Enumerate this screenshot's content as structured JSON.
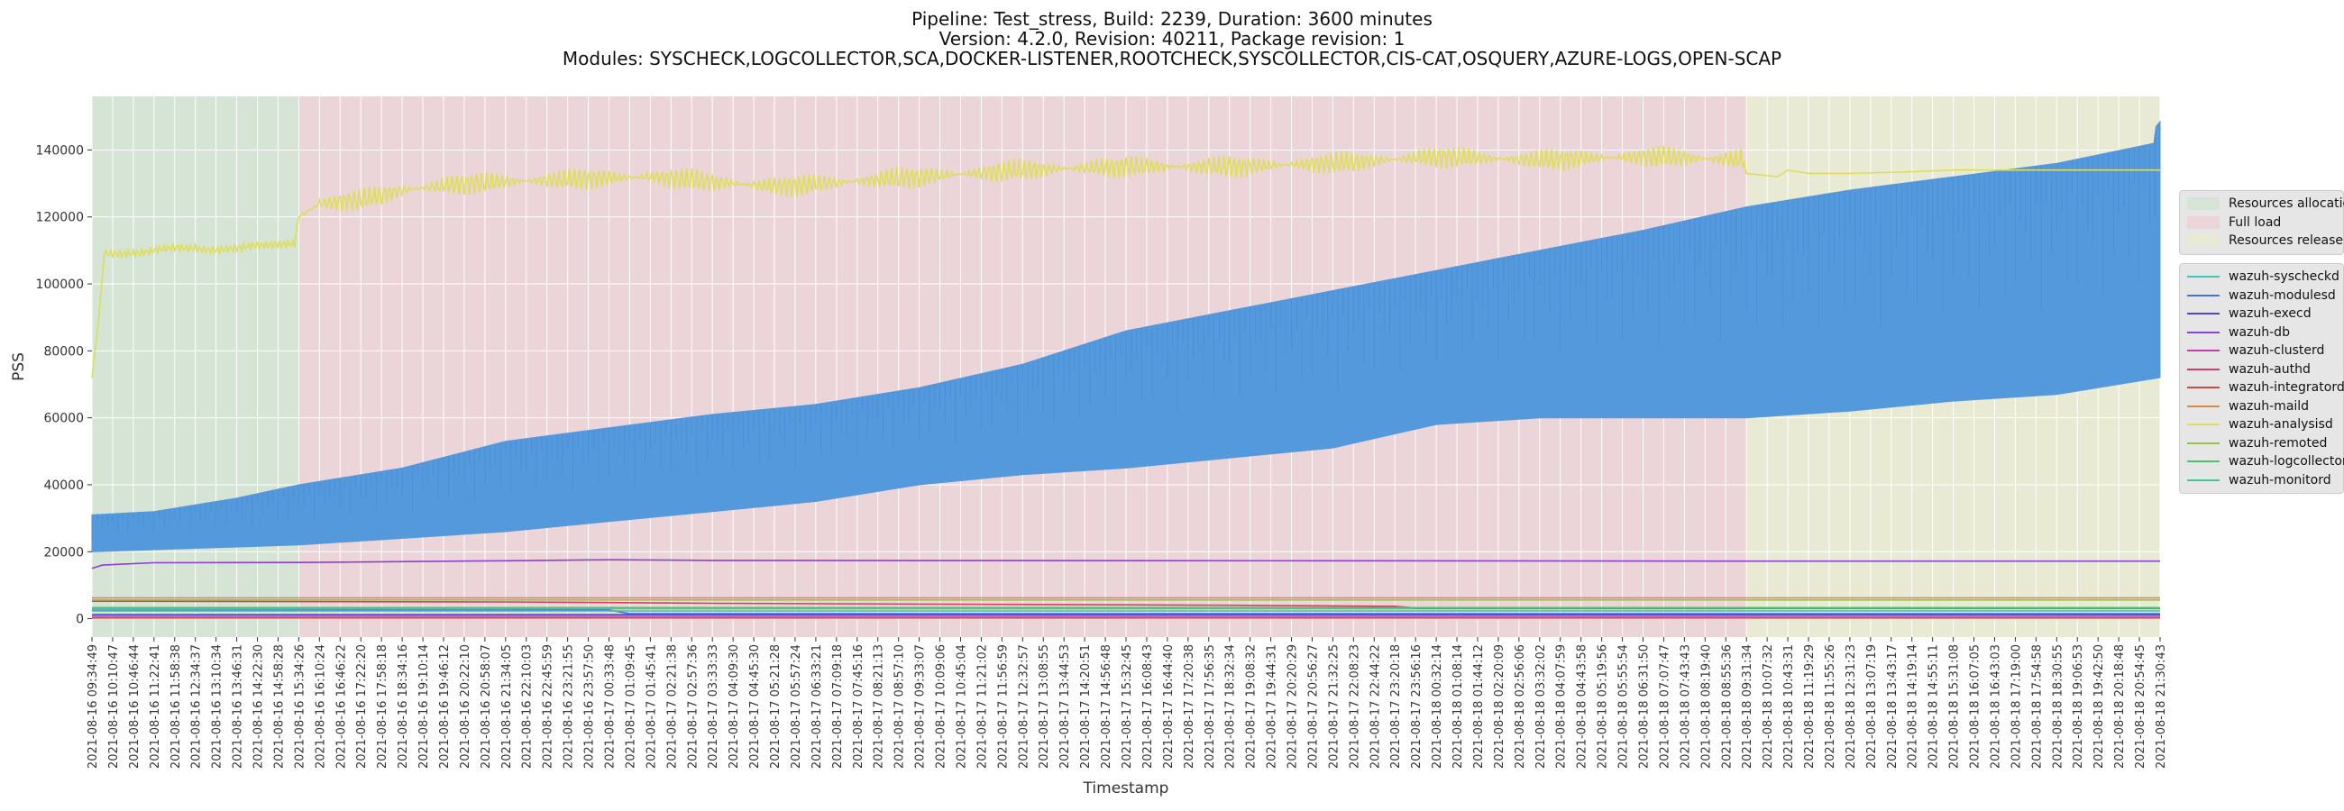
{
  "title_lines": [
    "Pipeline: Test_stress, Build: 2239, Duration: 3600 minutes",
    "Version: 4.2.0, Revision: 40211, Package revision: 1",
    "Modules: SYSCHECK,LOGCOLLECTOR,SCA,DOCKER-LISTENER,ROOTCHECK,SYSCOLLECTOR,CIS-CAT,OSQUERY,AZURE-LOGS,OPEN-SCAP"
  ],
  "chart_data": {
    "type": "line",
    "xlabel": "Timestamp",
    "ylabel": "PSS",
    "ylim": [
      -5500,
      156000
    ],
    "yticks": [
      0,
      20000,
      40000,
      60000,
      80000,
      100000,
      120000,
      140000
    ],
    "grid": true,
    "x_start": "2021-08-16 09:34:49",
    "x_end": "2021-08-18 21:30:43",
    "x_tick_labels": [
      "2021-08-16 09:34:49",
      "2021-08-16 10:10:47",
      "2021-08-16 10:46:44",
      "2021-08-16 11:22:41",
      "2021-08-16 11:58:38",
      "2021-08-16 12:34:37",
      "2021-08-16 13:10:34",
      "2021-08-16 13:46:31",
      "2021-08-16 14:22:30",
      "2021-08-16 14:58:28",
      "2021-08-16 15:34:26",
      "2021-08-16 16:10:24",
      "2021-08-16 16:46:22",
      "2021-08-16 17:22:20",
      "2021-08-16 17:58:18",
      "2021-08-16 18:34:16",
      "2021-08-16 19:10:14",
      "2021-08-16 19:46:12",
      "2021-08-16 20:22:10",
      "2021-08-16 20:58:07",
      "2021-08-16 21:34:05",
      "2021-08-16 22:10:03",
      "2021-08-16 22:45:59",
      "2021-08-16 23:21:55",
      "2021-08-16 23:57:50",
      "2021-08-17 00:33:48",
      "2021-08-17 01:09:45",
      "2021-08-17 01:45:41",
      "2021-08-17 02:21:38",
      "2021-08-17 02:57:36",
      "2021-08-17 03:33:33",
      "2021-08-17 04:09:30",
      "2021-08-17 04:45:30",
      "2021-08-17 05:21:28",
      "2021-08-17 05:57:24",
      "2021-08-17 06:33:21",
      "2021-08-17 07:09:18",
      "2021-08-17 07:45:16",
      "2021-08-17 08:21:13",
      "2021-08-17 08:57:10",
      "2021-08-17 09:33:07",
      "2021-08-17 10:09:06",
      "2021-08-17 10:45:04",
      "2021-08-17 11:21:02",
      "2021-08-17 11:56:59",
      "2021-08-17 12:32:57",
      "2021-08-17 13:08:55",
      "2021-08-17 13:44:53",
      "2021-08-17 14:20:51",
      "2021-08-17 14:56:48",
      "2021-08-17 15:32:45",
      "2021-08-17 16:08:43",
      "2021-08-17 16:44:40",
      "2021-08-17 17:20:38",
      "2021-08-17 17:56:35",
      "2021-08-17 18:32:34",
      "2021-08-17 19:08:32",
      "2021-08-17 19:44:31",
      "2021-08-17 20:20:29",
      "2021-08-17 20:56:27",
      "2021-08-17 21:32:25",
      "2021-08-17 22:08:23",
      "2021-08-17 22:44:22",
      "2021-08-17 23:20:18",
      "2021-08-17 23:56:16",
      "2021-08-18 00:32:14",
      "2021-08-18 01:08:14",
      "2021-08-18 01:44:12",
      "2021-08-18 02:20:09",
      "2021-08-18 02:56:06",
      "2021-08-18 03:32:02",
      "2021-08-18 04:07:59",
      "2021-08-18 04:43:58",
      "2021-08-18 05:19:56",
      "2021-08-18 05:55:54",
      "2021-08-18 06:31:50",
      "2021-08-18 07:07:47",
      "2021-08-18 07:43:43",
      "2021-08-18 08:19:40",
      "2021-08-18 08:55:36",
      "2021-08-18 09:31:34",
      "2021-08-18 10:07:32",
      "2021-08-18 10:43:31",
      "2021-08-18 11:19:29",
      "2021-08-18 11:55:26",
      "2021-08-18 12:31:23",
      "2021-08-18 13:07:19",
      "2021-08-18 13:43:17",
      "2021-08-18 14:19:14",
      "2021-08-18 14:55:11",
      "2021-08-18 15:31:08",
      "2021-08-18 16:07:05",
      "2021-08-18 16:43:03",
      "2021-08-18 17:19:00",
      "2021-08-18 17:54:58",
      "2021-08-18 18:30:55",
      "2021-08-18 19:06:53",
      "2021-08-18 19:42:50",
      "2021-08-18 20:18:48",
      "2021-08-18 20:54:45",
      "2021-08-18 21:30:43"
    ],
    "phases": [
      {
        "name": "Resources allocation",
        "start_tick": 0,
        "end_tick": 10,
        "color": "#d5e4d4"
      },
      {
        "name": "Full load",
        "start_tick": 10,
        "end_tick": 80,
        "color": "#ecd5d8"
      },
      {
        "name": "Resources release",
        "start_tick": 80,
        "end_tick": 100,
        "color": "#e9ead4"
      }
    ],
    "series": [
      {
        "name": "wazuh-syscheckd",
        "color": "#3ec7c0",
        "points": [
          [
            0,
            3000
          ],
          [
            50,
            3000
          ],
          [
            100,
            3000
          ]
        ]
      },
      {
        "name": "wazuh-modulesd",
        "color": "#4a6fe0",
        "points": [
          [
            0,
            2500
          ],
          [
            25,
            2600
          ],
          [
            26,
            1500
          ],
          [
            100,
            1500
          ]
        ]
      },
      {
        "name": "wazuh-execd",
        "color": "#5145d8",
        "points": [
          [
            0,
            1200
          ],
          [
            100,
            1200
          ]
        ]
      },
      {
        "name": "wazuh-db",
        "color": "#8d3fd6",
        "points": [
          [
            0,
            15000
          ],
          [
            0.5,
            16000
          ],
          [
            3,
            16700
          ],
          [
            10,
            16800
          ],
          [
            20,
            17300
          ],
          [
            25,
            17600
          ],
          [
            30,
            17400
          ],
          [
            60,
            17300
          ],
          [
            80,
            17200
          ],
          [
            100,
            17200
          ]
        ]
      },
      {
        "name": "wazuh-clusterd",
        "color": "#c43ea6",
        "points": [
          [
            0,
            700
          ],
          [
            100,
            700
          ]
        ]
      },
      {
        "name": "wazuh-authd",
        "color": "#d93c6a",
        "points": [
          [
            0,
            5200
          ],
          [
            20,
            5000
          ],
          [
            25,
            4800
          ],
          [
            30,
            4600
          ],
          [
            55,
            4000
          ],
          [
            63,
            3700
          ],
          [
            64,
            3200
          ],
          [
            100,
            3200
          ]
        ]
      },
      {
        "name": "wazuh-integratord",
        "color": "#d94a3a",
        "points": [
          [
            0,
            200
          ],
          [
            100,
            200
          ]
        ]
      },
      {
        "name": "wazuh-maild",
        "color": "#d98a40",
        "points": [
          [
            0,
            6200
          ],
          [
            100,
            6200
          ]
        ]
      },
      {
        "name": "wazuh-analysisd",
        "color": "#dede5a",
        "points": [
          [
            0,
            72000
          ],
          [
            0.3,
            88000
          ],
          [
            0.6,
            109000
          ],
          [
            2,
            109000
          ],
          [
            3,
            110000
          ],
          [
            4,
            111000
          ],
          [
            6,
            110000
          ],
          [
            8,
            111500
          ],
          [
            9.8,
            112000
          ],
          [
            10,
            120000
          ],
          [
            11,
            124000
          ],
          [
            13,
            125000
          ],
          [
            15,
            128000
          ],
          [
            18,
            130000
          ],
          [
            22,
            131000
          ],
          [
            27,
            132000
          ],
          [
            33,
            129000
          ],
          [
            40,
            132000
          ],
          [
            45,
            134000
          ],
          [
            50,
            135000
          ],
          [
            55,
            135000
          ],
          [
            60,
            136000
          ],
          [
            65,
            138000
          ],
          [
            70,
            137000
          ],
          [
            75,
            138000
          ],
          [
            79.9,
            137000
          ],
          [
            80,
            133000
          ],
          [
            81.5,
            132000
          ],
          [
            82,
            134000
          ],
          [
            83,
            133000
          ],
          [
            85,
            133000
          ],
          [
            88,
            133500
          ],
          [
            90,
            134000
          ],
          [
            100,
            134000
          ]
        ]
      },
      {
        "name": "wazuh-remoted",
        "color": "#98c548",
        "points": [
          [
            0,
            5600
          ],
          [
            100,
            5600
          ]
        ]
      },
      {
        "name": "wazuh-logcollector",
        "color": "#48c56a",
        "points": [
          [
            0,
            3300
          ],
          [
            100,
            3300
          ]
        ]
      },
      {
        "name": "wazuh-monitord",
        "color": "#3ec79a",
        "points": [
          [
            0,
            2300
          ],
          [
            100,
            2300
          ]
        ]
      },
      {
        "name": "",
        "color": "#5599dd",
        "band": true,
        "upper": [
          [
            0,
            31000
          ],
          [
            3,
            32000
          ],
          [
            7,
            36000
          ],
          [
            10,
            40000
          ],
          [
            15,
            45000
          ],
          [
            20,
            53000
          ],
          [
            25,
            57000
          ],
          [
            30,
            61000
          ],
          [
            35,
            64000
          ],
          [
            40,
            69000
          ],
          [
            45,
            76000
          ],
          [
            50,
            86000
          ],
          [
            55,
            92000
          ],
          [
            60,
            98000
          ],
          [
            65,
            104000
          ],
          [
            70,
            110000
          ],
          [
            75,
            116000
          ],
          [
            80,
            123000
          ],
          [
            85,
            128000
          ],
          [
            90,
            132000
          ],
          [
            95,
            136000
          ],
          [
            99.7,
            142000
          ],
          [
            99.8,
            147000
          ],
          [
            100,
            148500
          ]
        ],
        "lower": [
          [
            0,
            20000
          ],
          [
            10,
            22000
          ],
          [
            20,
            26000
          ],
          [
            25,
            29000
          ],
          [
            30,
            32000
          ],
          [
            35,
            35000
          ],
          [
            40,
            40000
          ],
          [
            45,
            43000
          ],
          [
            50,
            45000
          ],
          [
            55,
            48000
          ],
          [
            60,
            51000
          ],
          [
            65,
            58000
          ],
          [
            70,
            60000
          ],
          [
            75,
            60000
          ],
          [
            80,
            60000
          ],
          [
            85,
            62000
          ],
          [
            90,
            65000
          ],
          [
            95,
            67000
          ],
          [
            100,
            72000
          ]
        ]
      }
    ]
  }
}
